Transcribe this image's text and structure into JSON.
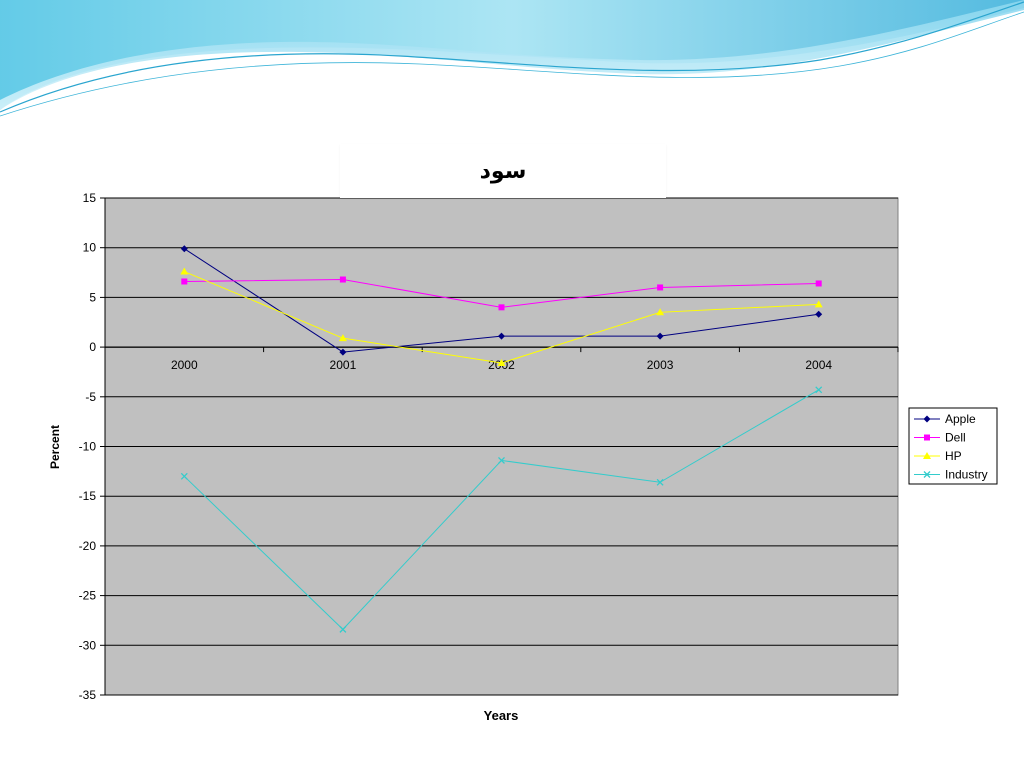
{
  "chart_data": {
    "type": "line",
    "title": "سود",
    "xlabel": "Years",
    "ylabel": "Percent",
    "categories": [
      "2000",
      "2001",
      "2002",
      "2003",
      "2004"
    ],
    "ylim": [
      -35,
      15
    ],
    "yticks": [
      15,
      10,
      5,
      0,
      -5,
      -10,
      -15,
      -20,
      -25,
      -30,
      -35
    ],
    "grid": true,
    "legend_position": "right",
    "plot_background": "#c0c0c0",
    "series": [
      {
        "name": "Apple",
        "values": [
          9.9,
          -0.5,
          1.1,
          1.1,
          3.3
        ],
        "color": "#000080",
        "marker": "diamond"
      },
      {
        "name": "Dell",
        "values": [
          6.6,
          6.8,
          4.0,
          6.0,
          6.4
        ],
        "color": "#ff00ff",
        "marker": "square"
      },
      {
        "name": "HP",
        "values": [
          7.6,
          0.9,
          -1.6,
          3.5,
          4.3
        ],
        "color": "#ffff00",
        "marker": "triangle"
      },
      {
        "name": "Industry",
        "values": [
          -13.0,
          -28.4,
          -11.4,
          -13.6,
          -4.3
        ],
        "color": "#33cccc",
        "marker": "x"
      }
    ]
  }
}
